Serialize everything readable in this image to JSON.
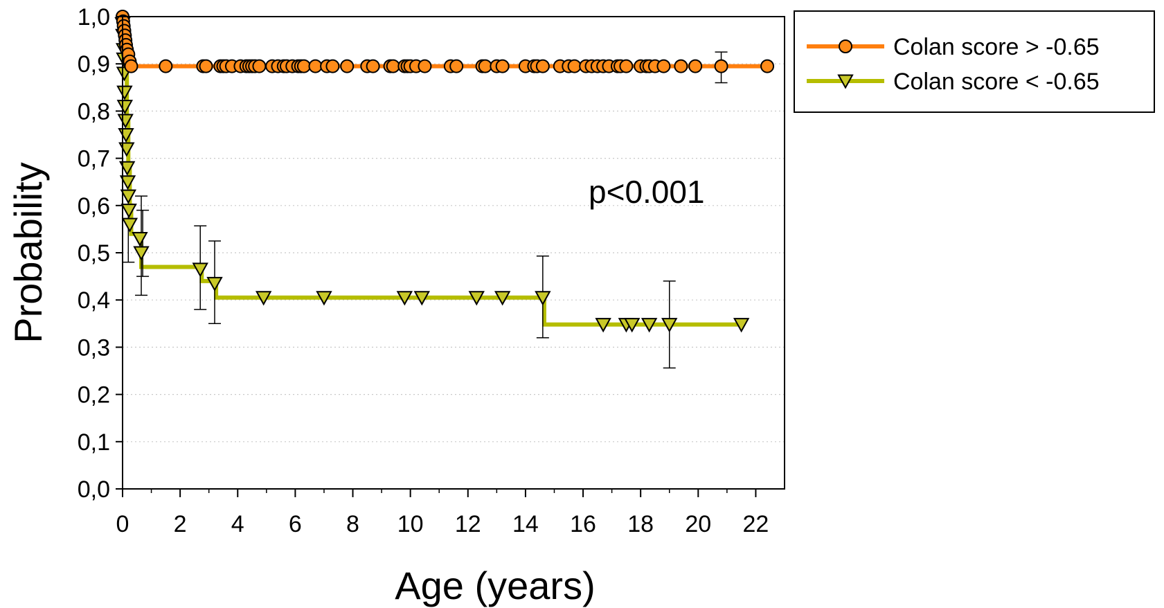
{
  "chart_data": {
    "type": "line",
    "subtype": "kaplan-meier step curves",
    "xlabel": "Age (years)",
    "ylabel": "Probability",
    "xlim": [
      0,
      23
    ],
    "ylim": [
      0,
      1
    ],
    "x_ticks": [
      0,
      2,
      4,
      6,
      8,
      10,
      12,
      14,
      16,
      18,
      20,
      22
    ],
    "x_tick_labels": [
      "0",
      "2",
      "4",
      "6",
      "8",
      "10",
      "12",
      "14",
      "16",
      "18",
      "20",
      "22"
    ],
    "y_ticks": [
      0,
      0.1,
      0.2,
      0.3,
      0.4,
      0.5,
      0.6,
      0.7,
      0.8,
      0.9,
      1.0
    ],
    "y_tick_labels": [
      "0,0",
      "0,1",
      "0,2",
      "0,3",
      "0,4",
      "0,5",
      "0,6",
      "0,7",
      "0,8",
      "0,9",
      "1,0"
    ],
    "grid": "horizontal dotted",
    "legend_position": "outside top-right",
    "annotation": "p<0.001",
    "series": [
      {
        "name": "Colan score > -0.65",
        "color": "#ff7f0e",
        "marker": "circle",
        "marker_color": "#ff8c1a",
        "steps": [
          [
            0,
            1.0
          ],
          [
            0.02,
            0.985
          ],
          [
            0.05,
            0.97
          ],
          [
            0.08,
            0.955
          ],
          [
            0.12,
            0.94
          ],
          [
            0.18,
            0.92
          ],
          [
            0.25,
            0.9
          ],
          [
            0.3,
            0.895
          ],
          [
            22.4,
            0.895
          ]
        ],
        "points": [
          [
            0,
            1.0
          ],
          [
            0.02,
            0.99
          ],
          [
            0.04,
            0.98
          ],
          [
            0.06,
            0.97
          ],
          [
            0.08,
            0.96
          ],
          [
            0.1,
            0.95
          ],
          [
            0.12,
            0.94
          ],
          [
            0.15,
            0.93
          ],
          [
            0.2,
            0.92
          ],
          [
            0.25,
            0.905
          ],
          [
            0.3,
            0.895
          ],
          [
            1.5,
            0.895
          ],
          [
            2.8,
            0.895
          ],
          [
            2.9,
            0.895
          ],
          [
            3.4,
            0.895
          ],
          [
            3.5,
            0.895
          ],
          [
            3.6,
            0.895
          ],
          [
            3.8,
            0.895
          ],
          [
            4.1,
            0.895
          ],
          [
            4.3,
            0.895
          ],
          [
            4.4,
            0.895
          ],
          [
            4.5,
            0.895
          ],
          [
            4.6,
            0.895
          ],
          [
            4.75,
            0.895
          ],
          [
            5.2,
            0.895
          ],
          [
            5.4,
            0.895
          ],
          [
            5.6,
            0.895
          ],
          [
            5.7,
            0.895
          ],
          [
            5.9,
            0.895
          ],
          [
            6.1,
            0.895
          ],
          [
            6.2,
            0.895
          ],
          [
            6.3,
            0.895
          ],
          [
            6.7,
            0.895
          ],
          [
            7.1,
            0.895
          ],
          [
            7.3,
            0.895
          ],
          [
            7.8,
            0.895
          ],
          [
            8.5,
            0.895
          ],
          [
            8.7,
            0.895
          ],
          [
            9.3,
            0.895
          ],
          [
            9.4,
            0.895
          ],
          [
            9.8,
            0.895
          ],
          [
            9.9,
            0.895
          ],
          [
            10.0,
            0.895
          ],
          [
            10.2,
            0.895
          ],
          [
            10.5,
            0.895
          ],
          [
            11.4,
            0.895
          ],
          [
            11.6,
            0.895
          ],
          [
            12.5,
            0.895
          ],
          [
            12.6,
            0.895
          ],
          [
            13.0,
            0.895
          ],
          [
            13.2,
            0.895
          ],
          [
            14.0,
            0.895
          ],
          [
            14.3,
            0.895
          ],
          [
            14.4,
            0.895
          ],
          [
            14.6,
            0.895
          ],
          [
            15.2,
            0.895
          ],
          [
            15.5,
            0.895
          ],
          [
            15.7,
            0.895
          ],
          [
            16.1,
            0.895
          ],
          [
            16.3,
            0.895
          ],
          [
            16.5,
            0.895
          ],
          [
            16.7,
            0.895
          ],
          [
            16.9,
            0.895
          ],
          [
            17.2,
            0.895
          ],
          [
            17.3,
            0.895
          ],
          [
            17.5,
            0.895
          ],
          [
            18.0,
            0.895
          ],
          [
            18.2,
            0.895
          ],
          [
            18.3,
            0.895
          ],
          [
            18.5,
            0.895
          ],
          [
            18.8,
            0.895
          ],
          [
            19.4,
            0.895
          ],
          [
            19.9,
            0.895
          ],
          [
            20.8,
            0.895
          ],
          [
            22.4,
            0.895
          ]
        ],
        "error_bars": [
          [
            20.8,
            0.86,
            0.925
          ]
        ]
      },
      {
        "name": "Colan score < -0.65",
        "color": "#b5bd00",
        "marker": "triangle-down",
        "marker_color": "#c8c828",
        "steps": [
          [
            0,
            1.0
          ],
          [
            0.05,
            0.96
          ],
          [
            0.1,
            0.88
          ],
          [
            0.15,
            0.78
          ],
          [
            0.2,
            0.68
          ],
          [
            0.25,
            0.6
          ],
          [
            0.3,
            0.54
          ],
          [
            0.6,
            0.54
          ],
          [
            0.65,
            0.47
          ],
          [
            2.7,
            0.47
          ],
          [
            2.75,
            0.44
          ],
          [
            3.2,
            0.44
          ],
          [
            3.25,
            0.405
          ],
          [
            14.6,
            0.405
          ],
          [
            14.65,
            0.348
          ],
          [
            21.5,
            0.348
          ]
        ],
        "points": [
          [
            0.0,
            0.985
          ],
          [
            0.02,
            0.96
          ],
          [
            0.04,
            0.93
          ],
          [
            0.05,
            0.91
          ],
          [
            0.06,
            0.88
          ],
          [
            0.07,
            0.84
          ],
          [
            0.08,
            0.81
          ],
          [
            0.1,
            0.78
          ],
          [
            0.12,
            0.75
          ],
          [
            0.14,
            0.72
          ],
          [
            0.16,
            0.68
          ],
          [
            0.18,
            0.65
          ],
          [
            0.2,
            0.62
          ],
          [
            0.22,
            0.59
          ],
          [
            0.25,
            0.56
          ],
          [
            0.6,
            0.53
          ],
          [
            0.65,
            0.5
          ],
          [
            2.7,
            0.465
          ],
          [
            3.2,
            0.435
          ],
          [
            4.9,
            0.405
          ],
          [
            7.0,
            0.405
          ],
          [
            9.8,
            0.405
          ],
          [
            10.4,
            0.405
          ],
          [
            12.3,
            0.405
          ],
          [
            13.2,
            0.405
          ],
          [
            14.6,
            0.405
          ],
          [
            16.7,
            0.348
          ],
          [
            17.5,
            0.348
          ],
          [
            17.7,
            0.348
          ],
          [
            18.3,
            0.348
          ],
          [
            19.0,
            0.348
          ],
          [
            21.5,
            0.348
          ]
        ],
        "error_bars": [
          [
            0.2,
            0.48,
            0.6
          ],
          [
            0.65,
            0.41,
            0.62
          ],
          [
            0.7,
            0.45,
            0.59
          ],
          [
            2.7,
            0.38,
            0.557
          ],
          [
            3.2,
            0.35,
            0.525
          ],
          [
            14.6,
            0.32,
            0.493
          ],
          [
            19.0,
            0.256,
            0.44
          ]
        ]
      }
    ]
  }
}
